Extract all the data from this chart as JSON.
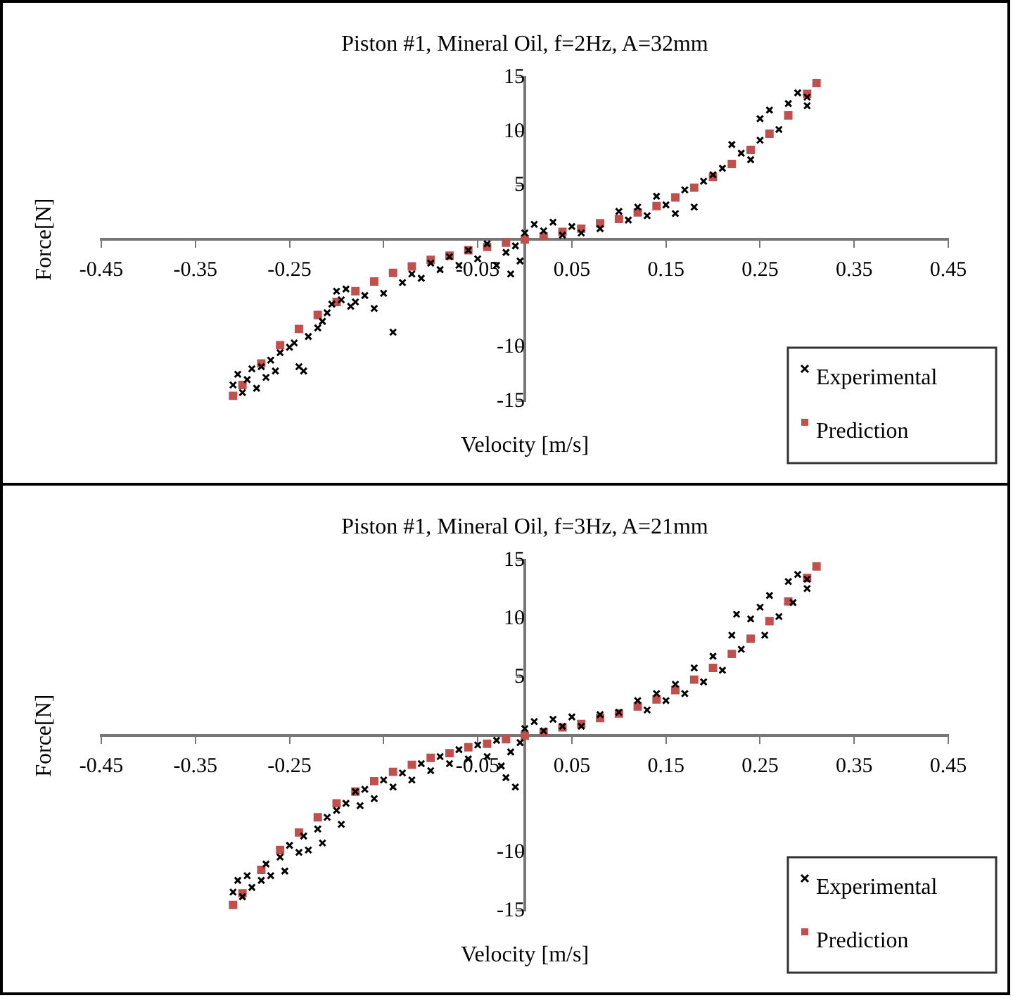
{
  "chart_data": [
    {
      "type": "scatter",
      "title": "Piston #1, Mineral Oil, f=2Hz, A=32mm",
      "xlabel": "Velocity [m/s]",
      "ylabel": "Force[N]",
      "legend": "bottom right",
      "grid": false,
      "xlim": [
        -0.45,
        0.45
      ],
      "xticks": [
        -0.45,
        -0.35,
        -0.25,
        {
          "value": -0.15,
          "label": null
        },
        -0.05,
        0.05,
        0.15,
        0.25,
        0.35,
        0.45
      ],
      "ylim": [
        -15,
        15
      ],
      "yticks": [
        -15,
        -10,
        5,
        10,
        15
      ],
      "series": [
        {
          "name": "Experimental",
          "color": "#000000",
          "marker": "cross",
          "x": [
            -0.31,
            -0.305,
            -0.3,
            -0.295,
            -0.29,
            -0.285,
            -0.28,
            -0.275,
            -0.27,
            -0.265,
            -0.26,
            -0.25,
            -0.24,
            -0.235,
            -0.245,
            -0.23,
            -0.22,
            -0.215,
            -0.21,
            -0.205,
            -0.2,
            -0.195,
            -0.19,
            -0.185,
            -0.18,
            -0.17,
            -0.16,
            -0.15,
            -0.14,
            -0.13,
            -0.12,
            -0.11,
            -0.1,
            -0.09,
            -0.08,
            -0.07,
            -0.06,
            -0.05,
            -0.04,
            -0.03,
            -0.02,
            -0.015,
            -0.01,
            -0.005,
            0,
            0.01,
            0.02,
            0.03,
            0.04,
            0.05,
            0.06,
            0.08,
            0.1,
            0.11,
            0.12,
            0.13,
            0.14,
            0.15,
            0.16,
            0.17,
            0.18,
            0.19,
            0.2,
            0.21,
            0.22,
            0.23,
            0.24,
            0.25,
            0.25,
            0.26,
            0.27,
            0.28,
            0.29,
            0.3,
            0.3
          ],
          "values": [
            -13.5,
            -12.5,
            -14.2,
            -13,
            -12,
            -13.8,
            -11.8,
            -12.8,
            -11.2,
            -12.2,
            -10.5,
            -10,
            -11.8,
            -12.2,
            -9.6,
            -9,
            -8.2,
            -7.6,
            -6.8,
            -6,
            -4.8,
            -5.6,
            -4.6,
            -6.2,
            -5.8,
            -5.2,
            -6.4,
            -5,
            -8.6,
            -4,
            -3.2,
            -3.6,
            -2.2,
            -2.8,
            -1.6,
            -2.4,
            -1,
            -1.8,
            -0.4,
            -2.4,
            -1.2,
            -3.2,
            -0.6,
            -2,
            0.6,
            1.4,
            0.8,
            1.6,
            0.4,
            1.2,
            0.6,
            1,
            2.6,
            1.8,
            3,
            2.2,
            4,
            3.2,
            2.4,
            4.6,
            3,
            5.4,
            6,
            6.6,
            8.8,
            8,
            7.4,
            9.2,
            11.2,
            12,
            10.2,
            12.6,
            13.6,
            12.4,
            13.2
          ]
        },
        {
          "name": "Prediction",
          "color": "#c0504d",
          "marker": "square",
          "x": [
            -0.31,
            -0.3,
            -0.28,
            -0.26,
            -0.24,
            -0.22,
            -0.2,
            -0.18,
            -0.16,
            -0.14,
            -0.12,
            -0.1,
            -0.08,
            -0.06,
            -0.04,
            -0.02,
            0,
            0.02,
            0.04,
            0.06,
            0.08,
            0.1,
            0.12,
            0.14,
            0.16,
            0.18,
            0.2,
            0.22,
            0.24,
            0.26,
            0.28,
            0.3,
            0.31
          ],
          "values": [
            -14.5,
            -13.5,
            -11.5,
            -9.8,
            -8.3,
            -7,
            -5.8,
            -4.8,
            -3.9,
            -3.1,
            -2.5,
            -1.9,
            -1.5,
            -1,
            -0.7,
            -0.3,
            0,
            0.3,
            0.7,
            1,
            1.5,
            1.9,
            2.5,
            3.1,
            3.9,
            4.8,
            5.8,
            7,
            8.3,
            9.8,
            11.5,
            13.5,
            14.5
          ]
        }
      ]
    },
    {
      "type": "scatter",
      "title": "Piston #1, Mineral Oil, f=3Hz, A=21mm",
      "xlabel": "Velocity [m/s]",
      "ylabel": "Force[N]",
      "legend": "bottom right",
      "grid": false,
      "xlim": [
        -0.45,
        0.45
      ],
      "xticks": [
        -0.45,
        -0.35,
        -0.25,
        {
          "value": -0.15,
          "label": null
        },
        -0.05,
        0.05,
        0.15,
        0.25,
        0.35,
        0.45
      ],
      "ylim": [
        -15,
        15
      ],
      "yticks": [
        -15,
        -10,
        5,
        10,
        15
      ],
      "series": [
        {
          "name": "Experimental",
          "color": "#000000",
          "marker": "cross",
          "x": [
            -0.31,
            -0.305,
            -0.3,
            -0.295,
            -0.29,
            -0.28,
            -0.275,
            -0.27,
            -0.26,
            -0.255,
            -0.25,
            -0.24,
            -0.235,
            -0.23,
            -0.22,
            -0.215,
            -0.21,
            -0.2,
            -0.195,
            -0.19,
            -0.18,
            -0.175,
            -0.17,
            -0.16,
            -0.15,
            -0.14,
            -0.13,
            -0.12,
            -0.11,
            -0.1,
            -0.09,
            -0.08,
            -0.07,
            -0.06,
            -0.05,
            -0.04,
            -0.03,
            -0.025,
            -0.02,
            -0.015,
            -0.01,
            -0.005,
            0,
            0.01,
            0.02,
            0.03,
            0.04,
            0.05,
            0.06,
            0.08,
            0.1,
            0.12,
            0.13,
            0.14,
            0.15,
            0.16,
            0.17,
            0.18,
            0.19,
            0.2,
            0.21,
            0.22,
            0.225,
            0.23,
            0.24,
            0.25,
            0.255,
            0.26,
            0.27,
            0.28,
            0.285,
            0.29,
            0.3,
            0.3
          ],
          "values": [
            -13.4,
            -12.4,
            -13.8,
            -12,
            -13,
            -12.4,
            -11,
            -12,
            -10.4,
            -11.6,
            -9.4,
            -10,
            -8.6,
            -9.8,
            -8,
            -9.2,
            -7,
            -6.4,
            -7.6,
            -5.8,
            -4.8,
            -6,
            -4.6,
            -5.4,
            -3.8,
            -4.4,
            -3.2,
            -3.8,
            -2.4,
            -3,
            -1.8,
            -2.4,
            -1.2,
            -2,
            -0.8,
            -1.8,
            -0.4,
            -2.6,
            -3.6,
            -1.4,
            -4.4,
            -0.6,
            0.6,
            1.2,
            0.4,
            1.4,
            0.8,
            1.6,
            0.8,
            1.8,
            2,
            3,
            2.2,
            3.6,
            3,
            4.4,
            3.6,
            5.8,
            4.6,
            6.8,
            5.6,
            8.6,
            10.4,
            7.4,
            10,
            11,
            8.6,
            12,
            10.2,
            13.2,
            11.4,
            13.8,
            12.6,
            13.4
          ]
        },
        {
          "name": "Prediction",
          "color": "#c0504d",
          "marker": "square",
          "x": [
            -0.31,
            -0.3,
            -0.28,
            -0.26,
            -0.24,
            -0.22,
            -0.2,
            -0.18,
            -0.16,
            -0.14,
            -0.12,
            -0.1,
            -0.08,
            -0.06,
            -0.04,
            -0.02,
            0,
            0.02,
            0.04,
            0.06,
            0.08,
            0.1,
            0.12,
            0.14,
            0.16,
            0.18,
            0.2,
            0.22,
            0.24,
            0.26,
            0.28,
            0.3,
            0.31
          ],
          "values": [
            -14.5,
            -13.5,
            -11.5,
            -9.8,
            -8.3,
            -7,
            -5.8,
            -4.8,
            -3.9,
            -3.1,
            -2.5,
            -1.9,
            -1.5,
            -1,
            -0.7,
            -0.3,
            0,
            0.3,
            0.7,
            1,
            1.5,
            1.9,
            2.5,
            3.1,
            3.9,
            4.8,
            5.8,
            7,
            8.3,
            9.8,
            11.5,
            13.5,
            14.5
          ]
        }
      ]
    }
  ]
}
